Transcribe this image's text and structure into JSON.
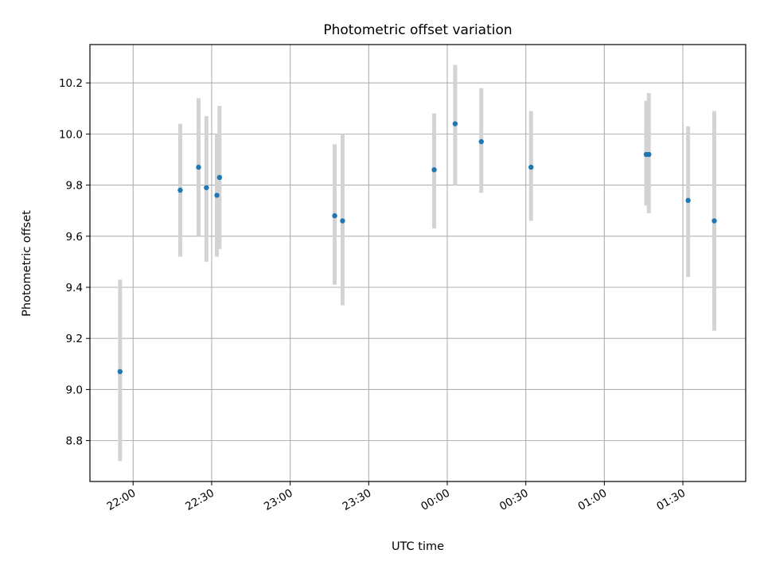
{
  "chart_data": {
    "type": "scatter",
    "title": "Photometric offset variation",
    "xlabel": "UTC time",
    "ylabel": "Photometric offset",
    "grid": true,
    "x_ticks": [
      "22:00",
      "22:30",
      "23:00",
      "23:30",
      "00:00",
      "00:30",
      "01:00",
      "01:30"
    ],
    "y_ticks": [
      "8.8",
      "9.0",
      "9.2",
      "9.4",
      "9.6",
      "9.8",
      "10.0",
      "10.2"
    ],
    "xlim": [
      "21:43:30",
      "01:54:00"
    ],
    "ylim": [
      8.64,
      10.35
    ],
    "colors": {
      "point": "#1f77b4",
      "errorbar": "#d3d3d3",
      "grid": "#b0b0b0"
    },
    "points": [
      {
        "x": "21:55",
        "y": 9.07,
        "ylow": 8.72,
        "yhigh": 9.43
      },
      {
        "x": "22:18",
        "y": 9.78,
        "ylow": 9.52,
        "yhigh": 10.04
      },
      {
        "x": "22:25",
        "y": 9.87,
        "ylow": 9.6,
        "yhigh": 10.14
      },
      {
        "x": "22:28",
        "y": 9.79,
        "ylow": 9.5,
        "yhigh": 10.07
      },
      {
        "x": "22:32",
        "y": 9.76,
        "ylow": 9.52,
        "yhigh": 10.0
      },
      {
        "x": "22:33",
        "y": 9.83,
        "ylow": 9.55,
        "yhigh": 10.11
      },
      {
        "x": "23:17",
        "y": 9.68,
        "ylow": 9.41,
        "yhigh": 9.96
      },
      {
        "x": "23:20",
        "y": 9.66,
        "ylow": 9.33,
        "yhigh": 10.0
      },
      {
        "x": "23:55",
        "y": 9.86,
        "ylow": 9.63,
        "yhigh": 10.08
      },
      {
        "x": "00:03",
        "y": 10.04,
        "ylow": 9.8,
        "yhigh": 10.27
      },
      {
        "x": "00:13",
        "y": 9.97,
        "ylow": 9.77,
        "yhigh": 10.18
      },
      {
        "x": "00:32",
        "y": 9.87,
        "ylow": 9.66,
        "yhigh": 10.09
      },
      {
        "x": "01:16",
        "y": 9.92,
        "ylow": 9.72,
        "yhigh": 10.13
      },
      {
        "x": "01:17",
        "y": 9.92,
        "ylow": 9.69,
        "yhigh": 10.16
      },
      {
        "x": "01:32",
        "y": 9.74,
        "ylow": 9.44,
        "yhigh": 10.03
      },
      {
        "x": "01:42",
        "y": 9.66,
        "ylow": 9.23,
        "yhigh": 10.09
      }
    ]
  }
}
